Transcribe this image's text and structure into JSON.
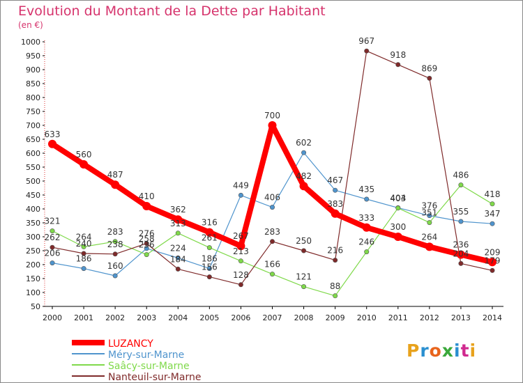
{
  "chart_data": {
    "type": "line",
    "title": "Evolution du Montant de la Dette par Habitant",
    "subtitle": "(en €)",
    "x": [
      "2000",
      "2001",
      "2002",
      "2003",
      "2004",
      "2005",
      "2006",
      "2007",
      "2008",
      "2009",
      "2010",
      "2011",
      "2012",
      "2013",
      "2014"
    ],
    "y_ticks": [
      50,
      100,
      150,
      200,
      250,
      300,
      350,
      400,
      450,
      500,
      550,
      600,
      650,
      700,
      750,
      800,
      850,
      900,
      950,
      1000
    ],
    "ylim": [
      50,
      1000
    ],
    "grid": false,
    "legend_position": "bottom-left",
    "series": [
      {
        "name": "LUZANCY",
        "color": "#ff0000",
        "values": [
          633,
          560,
          487,
          410,
          362,
          316,
          267,
          700,
          482,
          383,
          333,
          300,
          264,
          236,
          209
        ],
        "labels": [
          "633",
          "560",
          "487",
          "410",
          "362",
          "316",
          "267",
          "700",
          "482",
          "383",
          "333",
          "300",
          "264",
          "236",
          "209"
        ]
      },
      {
        "name": "Méry-sur-Marne",
        "color": "#4f94cd",
        "values": [
          206,
          186,
          160,
          258,
          224,
          186,
          449,
          406,
          602,
          467,
          435,
          404,
          376,
          355,
          347
        ],
        "labels": [
          "206",
          "186",
          "160",
          "258",
          "224",
          "186",
          "449",
          "406",
          "602",
          "467",
          "435",
          "404",
          "376",
          "355",
          "347"
        ]
      },
      {
        "name": "Saâcy-sur-Marne",
        "color": "#7fd94a",
        "values": [
          321,
          264,
          283,
          236,
          313,
          261,
          213,
          166,
          121,
          88,
          246,
          403,
          351,
          486,
          418
        ],
        "labels": [
          "321",
          "264",
          "283",
          "236",
          "313",
          "261",
          "213",
          "166",
          "121",
          "88",
          "246",
          "403",
          "351",
          "486",
          "418"
        ]
      },
      {
        "name": "Nanteuil-sur-Marne",
        "color": "#7f2a2a",
        "values": [
          262,
          240,
          238,
          276,
          184,
          156,
          128,
          283,
          250,
          216,
          967,
          918,
          869,
          204,
          179
        ],
        "labels": [
          "262",
          "240",
          "238",
          "276",
          "184",
          "156",
          "128",
          "283",
          "250",
          "216",
          "967",
          "918",
          "869",
          "204",
          "179"
        ]
      }
    ],
    "logo_text": "Proxiti",
    "logo_colors": [
      "#e8a21c",
      "#2a8fd0",
      "#e8641c",
      "#3aa83a",
      "#2a8fd0",
      "#d02a8f",
      "#e8a21c"
    ]
  }
}
